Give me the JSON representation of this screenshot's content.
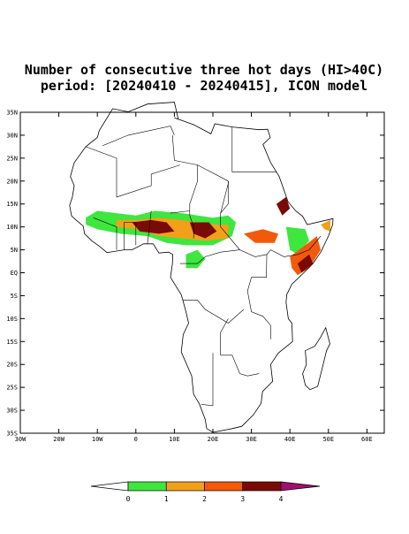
{
  "map": {
    "title": "Number of consecutive three hot days (HI>40C)",
    "subtitle": "period: [20240410 - 20240415], ICON model",
    "lonlim": [
      -30,
      64.5
    ],
    "latlim": [
      -35,
      35
    ],
    "lat_ticks": [
      {
        "value": 35,
        "label": "35N"
      },
      {
        "value": 30,
        "label": "30N"
      },
      {
        "value": 25,
        "label": "25N"
      },
      {
        "value": 20,
        "label": "20N"
      },
      {
        "value": 15,
        "label": "15N"
      },
      {
        "value": 10,
        "label": "10N"
      },
      {
        "value": 5,
        "label": "5N"
      },
      {
        "value": 0,
        "label": "EQ"
      },
      {
        "value": -5,
        "label": "5S"
      },
      {
        "value": -10,
        "label": "10S"
      },
      {
        "value": -15,
        "label": "15S"
      },
      {
        "value": -20,
        "label": "20S"
      },
      {
        "value": -25,
        "label": "25S"
      },
      {
        "value": -30,
        "label": "30S"
      },
      {
        "value": -35,
        "label": "35S"
      }
    ],
    "lon_ticks": [
      {
        "value": -30,
        "label": "30W"
      },
      {
        "value": -20,
        "label": "20W"
      },
      {
        "value": -10,
        "label": "10W"
      },
      0,
      {
        "value": 10,
        "label": "10E"
      },
      {
        "value": 20,
        "label": "20E"
      },
      {
        "value": 30,
        "label": "30E"
      },
      {
        "value": 40,
        "label": "40E"
      },
      {
        "value": 50,
        "label": "50E"
      },
      {
        "value": 60,
        "label": "60E"
      }
    ],
    "colorbar": {
      "levels": [
        0,
        1,
        2,
        3,
        4
      ],
      "colors": [
        "#ffffff",
        "#3ee63e",
        "#f2a01a",
        "#f25a0a",
        "#7a0a05",
        "#a0106e"
      ]
    }
  }
}
